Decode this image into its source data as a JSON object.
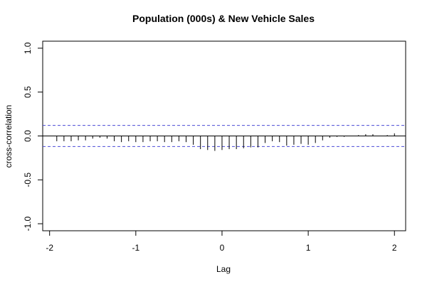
{
  "chart_data": {
    "type": "bar",
    "title": "Population (000s) & New Vehicle Sales",
    "xlabel": "Lag",
    "ylabel": "cross-correlation",
    "xlim": [
      -2.08,
      2.13
    ],
    "ylim": [
      -1.08,
      1.08
    ],
    "x_ticks": [
      -2,
      -1,
      0,
      1,
      2
    ],
    "x_tick_labels": [
      "-2",
      "-1",
      "0",
      "1",
      "2"
    ],
    "y_ticks": [
      -1.0,
      -0.5,
      0.0,
      0.5,
      1.0
    ],
    "y_tick_labels": [
      "-1.0",
      "-0.5",
      "0.0",
      "0.5",
      "1.0"
    ],
    "confidence_bounds": [
      0.12,
      -0.12
    ],
    "grid": false,
    "colors": {
      "bars": "#000000",
      "zero_line": "#000000",
      "bounds": "#4a4ad6"
    },
    "series": [
      {
        "x": [
          -1.9167,
          -1.8333,
          -1.75,
          -1.6667,
          -1.5833,
          -1.5,
          -1.4167,
          -1.3333,
          -1.25,
          -1.1667,
          -1.0833,
          -1.0,
          -0.9167,
          -0.8333,
          -0.75,
          -0.6667,
          -0.5833,
          -0.5,
          -0.4167,
          -0.3333,
          -0.25,
          -0.1667,
          -0.0833,
          0.0,
          0.0833,
          0.1667,
          0.25,
          0.3333,
          0.4167,
          0.5,
          0.5833,
          0.6667,
          0.75,
          0.8333,
          0.9167,
          1.0,
          1.0833,
          1.1667,
          1.25,
          1.3333,
          1.4167,
          1.5,
          1.5833,
          1.6667,
          1.75,
          1.8333,
          1.9167,
          2.0
        ],
        "values": [
          -0.06,
          -0.06,
          -0.06,
          -0.05,
          -0.05,
          -0.03,
          -0.02,
          -0.03,
          -0.06,
          -0.07,
          -0.06,
          -0.07,
          -0.07,
          -0.06,
          -0.06,
          -0.07,
          -0.07,
          -0.06,
          -0.07,
          -0.1,
          -0.15,
          -0.16,
          -0.17,
          -0.16,
          -0.15,
          -0.15,
          -0.14,
          -0.13,
          -0.13,
          -0.08,
          -0.06,
          -0.07,
          -0.11,
          -0.1,
          -0.09,
          -0.1,
          -0.08,
          -0.05,
          -0.02,
          -0.01,
          -0.01,
          0.0,
          0.01,
          0.02,
          0.02,
          0.0,
          0.01,
          0.03
        ]
      }
    ]
  }
}
